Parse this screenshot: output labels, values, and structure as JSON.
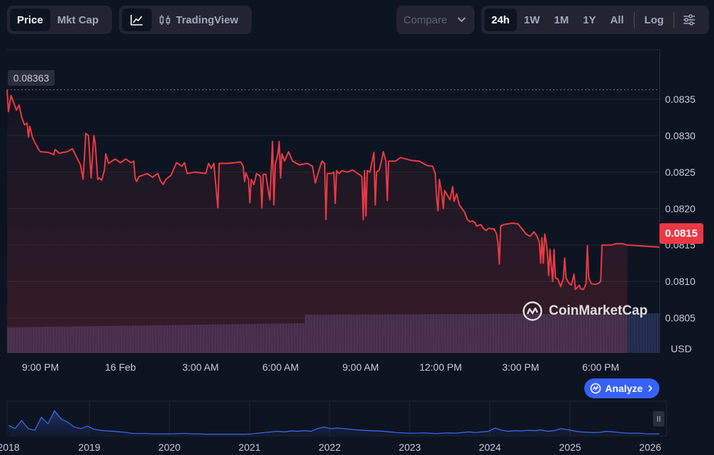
{
  "toolbar": {
    "metric_tabs": [
      "Price",
      "Mkt Cap"
    ],
    "active_metric": "Price",
    "tradingview_label": "TradingView",
    "compare_label": "Compare",
    "ranges": [
      "24h",
      "1W",
      "1M",
      "1Y",
      "All"
    ],
    "active_range": "24h",
    "log_label": "Log"
  },
  "price_labels": {
    "max": "0.08363",
    "last": "0.0815"
  },
  "colors": {
    "line": "#ea3943",
    "background": "#0d1421",
    "volume": "#263154",
    "overview_line": "#3e6bf5",
    "accent": "#3861fb"
  },
  "watermark": "CoinMarketCap",
  "analyze_label": "Analyze",
  "chart_data": [
    {
      "type": "line",
      "currency_label": "USD",
      "y_ticks": [
        "0.0805",
        "0.0810",
        "0.0815",
        "0.0820",
        "0.0825",
        "0.0830",
        "0.0835"
      ],
      "ylim": [
        0.08002,
        0.08418
      ],
      "x_ticks": [
        "9:00 PM",
        "16 Feb",
        "3:00 AM",
        "6:00 AM",
        "9:00 AM",
        "12:00 PM",
        "3:00 PM",
        "6:00 PM"
      ],
      "x_tick_hours": [
        21,
        24,
        27,
        30,
        33,
        36,
        39,
        42
      ],
      "xlim": [
        19.75,
        44.2
      ],
      "grid": true,
      "series": [
        {
          "points": [
            [
              19.75,
              0.08363
            ],
            [
              19.8,
              0.08333
            ],
            [
              19.9,
              0.08355
            ],
            [
              20.0,
              0.08345
            ],
            [
              20.1,
              0.08335
            ],
            [
              20.2,
              0.08342
            ],
            [
              20.3,
              0.08325
            ],
            [
              20.4,
              0.08315
            ],
            [
              20.5,
              0.08317
            ],
            [
              20.55,
              0.08298
            ],
            [
              20.6,
              0.08313
            ],
            [
              20.7,
              0.08298
            ],
            [
              20.8,
              0.0829
            ],
            [
              20.95,
              0.0828
            ],
            [
              21.0,
              0.08278
            ],
            [
              21.3,
              0.08277
            ],
            [
              21.5,
              0.08274
            ],
            [
              21.55,
              0.08281
            ],
            [
              21.7,
              0.08276
            ],
            [
              22.0,
              0.08278
            ],
            [
              22.2,
              0.08282
            ],
            [
              22.35,
              0.08271
            ],
            [
              22.5,
              0.0826
            ],
            [
              22.6,
              0.0824
            ],
            [
              22.7,
              0.08303
            ],
            [
              22.8,
              0.083
            ],
            [
              22.9,
              0.08242
            ],
            [
              23.0,
              0.083
            ],
            [
              23.05,
              0.0829
            ],
            [
              23.15,
              0.0824
            ],
            [
              23.2,
              0.08242
            ],
            [
              23.3,
              0.08239
            ],
            [
              23.4,
              0.08253
            ],
            [
              23.45,
              0.08275
            ],
            [
              23.55,
              0.08262
            ],
            [
              23.8,
              0.08268
            ],
            [
              24.0,
              0.08263
            ],
            [
              24.2,
              0.08268
            ],
            [
              24.4,
              0.08263
            ],
            [
              24.5,
              0.08265
            ],
            [
              24.55,
              0.08242
            ],
            [
              24.6,
              0.08237
            ],
            [
              24.7,
              0.08244
            ],
            [
              25.0,
              0.08248
            ],
            [
              25.2,
              0.08243
            ],
            [
              25.4,
              0.08248
            ],
            [
              25.5,
              0.08238
            ],
            [
              25.6,
              0.08233
            ],
            [
              25.7,
              0.0824
            ],
            [
              25.9,
              0.08246
            ],
            [
              26.1,
              0.08263
            ],
            [
              26.3,
              0.08258
            ],
            [
              26.4,
              0.08263
            ],
            [
              26.5,
              0.08248
            ],
            [
              26.8,
              0.0825
            ],
            [
              27.0,
              0.08249
            ],
            [
              27.2,
              0.08248
            ],
            [
              27.3,
              0.08262
            ],
            [
              27.4,
              0.08255
            ],
            [
              27.5,
              0.08262
            ],
            [
              27.65,
              0.08201
            ],
            [
              27.7,
              0.08262
            ],
            [
              28.0,
              0.08262
            ],
            [
              28.3,
              0.08263
            ],
            [
              28.5,
              0.08264
            ],
            [
              28.6,
              0.08258
            ],
            [
              28.65,
              0.08237
            ],
            [
              28.7,
              0.08249
            ],
            [
              28.8,
              0.0824
            ],
            [
              28.85,
              0.08208
            ],
            [
              28.9,
              0.0824
            ],
            [
              29.0,
              0.08233
            ],
            [
              29.1,
              0.08248
            ],
            [
              29.25,
              0.08244
            ],
            [
              29.3,
              0.08201
            ],
            [
              29.35,
              0.08247
            ],
            [
              29.45,
              0.08247
            ],
            [
              29.55,
              0.08222
            ],
            [
              29.6,
              0.08212
            ],
            [
              29.7,
              0.08292
            ],
            [
              29.75,
              0.08205
            ],
            [
              29.8,
              0.0826
            ],
            [
              29.9,
              0.08275
            ],
            [
              29.95,
              0.08292
            ],
            [
              30.0,
              0.08242
            ],
            [
              30.05,
              0.08275
            ],
            [
              30.15,
              0.08265
            ],
            [
              30.3,
              0.08278
            ],
            [
              30.45,
              0.08265
            ],
            [
              30.7,
              0.0826
            ],
            [
              31.0,
              0.08262
            ],
            [
              31.2,
              0.08258
            ],
            [
              31.3,
              0.08235
            ],
            [
              31.4,
              0.08248
            ],
            [
              31.55,
              0.08265
            ],
            [
              31.65,
              0.08262
            ],
            [
              31.7,
              0.08185
            ],
            [
              31.75,
              0.08248
            ],
            [
              31.9,
              0.08248
            ],
            [
              32.0,
              0.0825
            ],
            [
              32.05,
              0.08207
            ],
            [
              32.1,
              0.08252
            ],
            [
              32.2,
              0.08248
            ],
            [
              32.3,
              0.08252
            ],
            [
              32.5,
              0.0825
            ],
            [
              32.7,
              0.08253
            ],
            [
              32.9,
              0.08248
            ],
            [
              33.05,
              0.08244
            ],
            [
              33.1,
              0.08185
            ],
            [
              33.15,
              0.08252
            ],
            [
              33.2,
              0.0819
            ],
            [
              33.25,
              0.08252
            ],
            [
              33.35,
              0.0825
            ],
            [
              33.5,
              0.08277
            ],
            [
              33.55,
              0.08205
            ],
            [
              33.6,
              0.0825
            ],
            [
              33.7,
              0.08253
            ],
            [
              33.8,
              0.08268
            ],
            [
              33.85,
              0.08278
            ],
            [
              33.95,
              0.08265
            ],
            [
              34.0,
              0.08211
            ],
            [
              34.05,
              0.08265
            ],
            [
              34.3,
              0.08265
            ],
            [
              34.5,
              0.0827
            ],
            [
              34.7,
              0.08268
            ],
            [
              34.9,
              0.08266
            ],
            [
              35.2,
              0.08265
            ],
            [
              35.5,
              0.08259
            ],
            [
              35.7,
              0.08258
            ],
            [
              35.8,
              0.08248
            ],
            [
              35.85,
              0.08215
            ],
            [
              35.9,
              0.08197
            ],
            [
              35.95,
              0.0824
            ],
            [
              36.05,
              0.08219
            ],
            [
              36.1,
              0.082
            ],
            [
              36.15,
              0.08225
            ],
            [
              36.35,
              0.08212
            ],
            [
              36.45,
              0.0823
            ],
            [
              36.5,
              0.0821
            ],
            [
              36.6,
              0.0822
            ],
            [
              36.7,
              0.08205
            ],
            [
              36.8,
              0.082
            ],
            [
              36.9,
              0.08195
            ],
            [
              37.0,
              0.08185
            ],
            [
              37.1,
              0.08182
            ],
            [
              37.2,
              0.08183
            ],
            [
              37.3,
              0.0818
            ],
            [
              37.35,
              0.08176
            ],
            [
              37.5,
              0.08178
            ],
            [
              37.6,
              0.08173
            ],
            [
              37.7,
              0.0817
            ],
            [
              37.8,
              0.08173
            ],
            [
              38.0,
              0.08172
            ],
            [
              38.1,
              0.08165
            ],
            [
              38.15,
              0.08152
            ],
            [
              38.2,
              0.08124
            ],
            [
              38.25,
              0.08176
            ],
            [
              38.35,
              0.08178
            ],
            [
              38.7,
              0.0818
            ],
            [
              38.9,
              0.08179
            ],
            [
              39.1,
              0.0817
            ],
            [
              39.2,
              0.08165
            ],
            [
              39.35,
              0.08162
            ],
            [
              39.5,
              0.08168
            ],
            [
              39.6,
              0.08163
            ],
            [
              39.7,
              0.08154
            ],
            [
              39.75,
              0.08125
            ],
            [
              39.8,
              0.0816
            ],
            [
              39.85,
              0.08125
            ],
            [
              39.9,
              0.08165
            ],
            [
              39.95,
              0.08156
            ],
            [
              40.0,
              0.0814
            ],
            [
              40.05,
              0.08108
            ],
            [
              40.1,
              0.08144
            ],
            [
              40.2,
              0.081
            ],
            [
              40.25,
              0.08144
            ],
            [
              40.3,
              0.08105
            ],
            [
              40.4,
              0.08103
            ],
            [
              40.5,
              0.08093
            ],
            [
              40.6,
              0.08104
            ],
            [
              40.65,
              0.08132
            ],
            [
              40.7,
              0.08105
            ],
            [
              40.8,
              0.08098
            ],
            [
              40.9,
              0.08095
            ],
            [
              41.0,
              0.0811
            ],
            [
              41.05,
              0.08089
            ],
            [
              41.15,
              0.08093
            ],
            [
              41.2,
              0.08095
            ],
            [
              41.25,
              0.0809
            ],
            [
              41.35,
              0.08089
            ],
            [
              41.45,
              0.08097
            ],
            [
              41.5,
              0.08149
            ],
            [
              41.55,
              0.08105
            ],
            [
              41.65,
              0.08097
            ],
            [
              41.8,
              0.08096
            ],
            [
              41.95,
              0.08098
            ],
            [
              42.0,
              0.08101
            ],
            [
              42.05,
              0.0815
            ],
            [
              42.2,
              0.0815
            ],
            [
              42.4,
              0.0815
            ],
            [
              42.6,
              0.08152
            ],
            [
              42.8,
              0.08152
            ],
            [
              43.0,
              0.0815
            ]
          ]
        }
      ]
    },
    {
      "type": "area",
      "x_ticks": [
        "2018",
        "2019",
        "2020",
        "2021",
        "2022",
        "2023",
        "2024",
        "2025",
        "2026"
      ],
      "values": [
        0.3,
        0.2,
        0.45,
        0.2,
        0.15,
        0.55,
        0.35,
        0.75,
        0.5,
        0.4,
        0.25,
        0.2,
        0.28,
        0.18,
        0.15,
        0.13,
        0.12,
        0.1,
        0.08,
        0.05,
        0.05,
        0.05,
        0.04,
        0.04,
        0.04,
        0.04,
        0.05,
        0.05,
        0.04,
        0.04,
        0.03,
        0.03,
        0.03,
        0.03,
        0.03,
        0.03,
        0.03,
        0.04,
        0.06,
        0.08,
        0.1,
        0.12,
        0.1,
        0.13,
        0.12,
        0.14,
        0.12,
        0.2,
        0.25,
        0.2,
        0.22,
        0.2,
        0.18,
        0.16,
        0.15,
        0.14,
        0.13,
        0.12,
        0.1,
        0.08,
        0.07,
        0.06,
        0.06,
        0.07,
        0.06,
        0.05,
        0.06,
        0.07,
        0.06,
        0.08,
        0.1,
        0.08,
        0.1,
        0.12,
        0.22,
        0.15,
        0.12,
        0.14,
        0.13,
        0.15,
        0.14,
        0.16,
        0.12,
        0.14,
        0.2,
        0.17,
        0.13,
        0.1,
        0.09,
        0.08,
        0.09,
        0.12,
        0.1,
        0.08,
        0.06,
        0.06,
        0.06,
        0.04,
        0.04,
        0.04
      ]
    }
  ]
}
